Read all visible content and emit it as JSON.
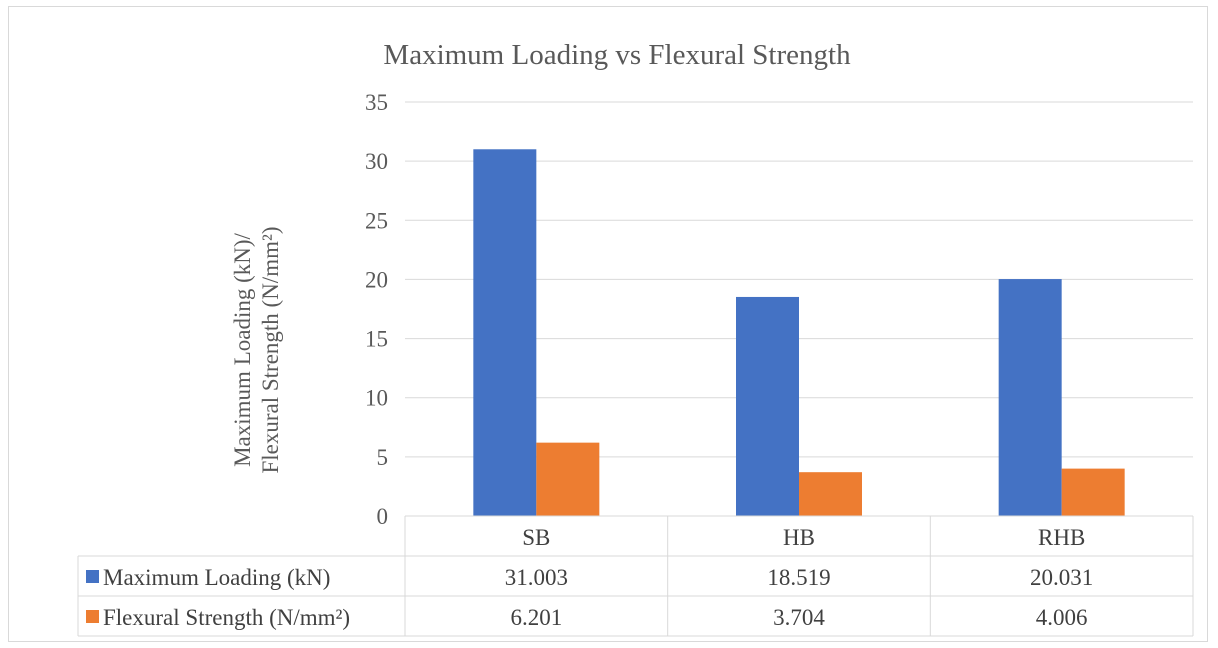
{
  "chart_data": {
    "type": "bar",
    "title": "Maximum Loading vs Flexural Strength",
    "ylabel_lines": [
      "Maximum Loading (kN)/",
      "Flexural Strength (N/mm²)"
    ],
    "xlabel": "",
    "categories": [
      "SB",
      "HB",
      "RHB"
    ],
    "series": [
      {
        "name": "Maximum Loading (kN)",
        "values": [
          31.003,
          18.519,
          20.031
        ],
        "display_values": [
          "31.003",
          "18.519",
          "20.031"
        ],
        "color": "#4472C4"
      },
      {
        "name": "Flexural Strength (N/mm²)",
        "values": [
          6.201,
          3.704,
          4.006
        ],
        "display_values": [
          "6.201",
          "3.704",
          "4.006"
        ],
        "color": "#ED7D31"
      }
    ],
    "ylim": [
      0,
      35
    ],
    "yticks": [
      0,
      5,
      10,
      15,
      20,
      25,
      30,
      35
    ],
    "grid": true,
    "legend": "data-table"
  },
  "colors": {
    "gridline": "#d9d9d9",
    "text": "#404040",
    "title": "#595959"
  }
}
